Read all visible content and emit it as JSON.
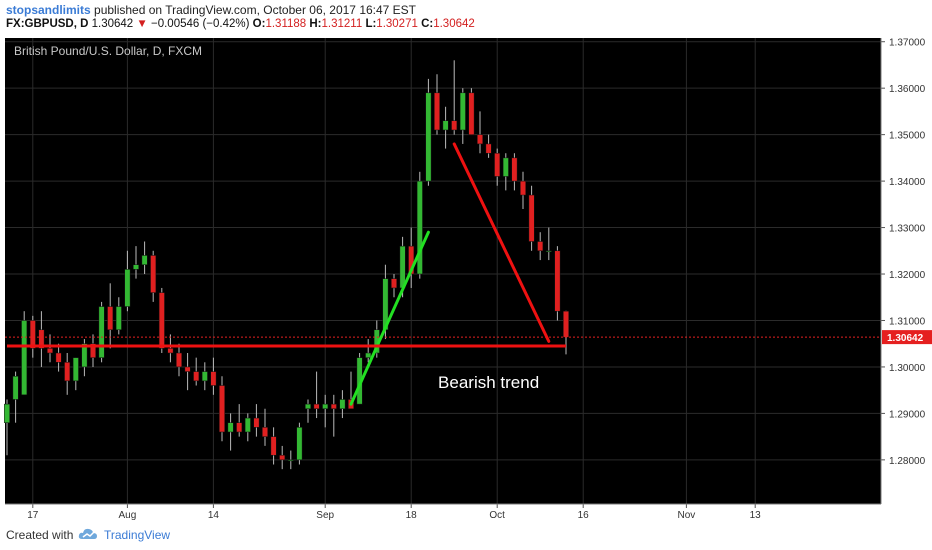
{
  "header": {
    "user": "stopsandlimits",
    "published_text": "published on TradingView.com, October 06, 2017 16:47 EST",
    "symbol": "FX:GBPUSD, D",
    "last": "1.30642",
    "change_arrow": "▼",
    "change": "−0.00546 (−0.42%)",
    "o_label": "O:",
    "o_val": "1.31188",
    "h_label": "H:",
    "h_val": "1.31211",
    "l_label": "L:",
    "l_val": "1.30271",
    "c_label": "C:",
    "c_val": "1.30642"
  },
  "footer": {
    "created_with": "Created with",
    "brand": "TradingView",
    "logo_icon": "tradingview-cloud-icon"
  },
  "colors": {
    "background": "#000000",
    "grid": "#2b2b2b",
    "up": "#33b833",
    "down": "#e02020",
    "green_trend": "#22e022",
    "red_trend": "#ee1111",
    "price_tag": "#e52020"
  },
  "chart_data": {
    "type": "candlestick",
    "title": "British Pound/U.S. Dollar, D, FXCM",
    "ylim": [
      1.2705,
      1.3708
    ],
    "y_ticks": [
      1.28,
      1.29,
      1.3,
      1.31,
      1.32,
      1.33,
      1.34,
      1.35,
      1.36,
      1.37
    ],
    "y_tick_labels": [
      "1.28000",
      "1.29000",
      "1.30000",
      "1.31000",
      "1.32000",
      "1.33000",
      "1.34000",
      "1.35000",
      "1.36000",
      "1.37000"
    ],
    "x_ticks": [
      {
        "label": "17",
        "index": 3
      },
      {
        "label": "Aug",
        "index": 14
      },
      {
        "label": "14",
        "index": 24
      },
      {
        "label": "Sep",
        "index": 37
      },
      {
        "label": "18",
        "index": 47
      },
      {
        "label": "Oct",
        "index": 57
      },
      {
        "label": "16",
        "index": 67
      },
      {
        "label": "Nov",
        "index": 79
      },
      {
        "label": "13",
        "index": 87
      }
    ],
    "x_index_range": [
      0,
      100
    ],
    "grid": true,
    "last_price_label": "1.30642",
    "last_price": 1.30642,
    "candles": [
      {
        "o": 1.288,
        "h": 1.293,
        "l": 1.281,
        "c": 1.292
      },
      {
        "o": 1.293,
        "h": 1.299,
        "l": 1.288,
        "c": 1.298
      },
      {
        "o": 1.294,
        "h": 1.312,
        "l": 1.294,
        "c": 1.31
      },
      {
        "o": 1.31,
        "h": 1.311,
        "l": 1.302,
        "c": 1.304
      },
      {
        "o": 1.308,
        "h": 1.312,
        "l": 1.3,
        "c": 1.304
      },
      {
        "o": 1.304,
        "h": 1.307,
        "l": 1.301,
        "c": 1.303
      },
      {
        "o": 1.303,
        "h": 1.305,
        "l": 1.299,
        "c": 1.301
      },
      {
        "o": 1.301,
        "h": 1.303,
        "l": 1.294,
        "c": 1.297
      },
      {
        "o": 1.297,
        "h": 1.302,
        "l": 1.295,
        "c": 1.302
      },
      {
        "o": 1.3,
        "h": 1.306,
        "l": 1.298,
        "c": 1.305
      },
      {
        "o": 1.305,
        "h": 1.307,
        "l": 1.3,
        "c": 1.302
      },
      {
        "o": 1.302,
        "h": 1.314,
        "l": 1.301,
        "c": 1.313
      },
      {
        "o": 1.313,
        "h": 1.318,
        "l": 1.304,
        "c": 1.308
      },
      {
        "o": 1.308,
        "h": 1.315,
        "l": 1.307,
        "c": 1.313
      },
      {
        "o": 1.313,
        "h": 1.325,
        "l": 1.312,
        "c": 1.321
      },
      {
        "o": 1.321,
        "h": 1.326,
        "l": 1.319,
        "c": 1.322
      },
      {
        "o": 1.322,
        "h": 1.327,
        "l": 1.32,
        "c": 1.324
      },
      {
        "o": 1.324,
        "h": 1.325,
        "l": 1.314,
        "c": 1.316
      },
      {
        "o": 1.316,
        "h": 1.317,
        "l": 1.303,
        "c": 1.304
      },
      {
        "o": 1.304,
        "h": 1.307,
        "l": 1.301,
        "c": 1.303
      },
      {
        "o": 1.303,
        "h": 1.305,
        "l": 1.298,
        "c": 1.3
      },
      {
        "o": 1.3,
        "h": 1.303,
        "l": 1.295,
        "c": 1.299
      },
      {
        "o": 1.299,
        "h": 1.302,
        "l": 1.296,
        "c": 1.297
      },
      {
        "o": 1.297,
        "h": 1.301,
        "l": 1.295,
        "c": 1.299
      },
      {
        "o": 1.299,
        "h": 1.302,
        "l": 1.294,
        "c": 1.296
      },
      {
        "o": 1.296,
        "h": 1.298,
        "l": 1.284,
        "c": 1.286
      },
      {
        "o": 1.286,
        "h": 1.29,
        "l": 1.282,
        "c": 1.288
      },
      {
        "o": 1.288,
        "h": 1.292,
        "l": 1.285,
        "c": 1.286
      },
      {
        "o": 1.286,
        "h": 1.29,
        "l": 1.284,
        "c": 1.289
      },
      {
        "o": 1.289,
        "h": 1.292,
        "l": 1.285,
        "c": 1.287
      },
      {
        "o": 1.287,
        "h": 1.291,
        "l": 1.283,
        "c": 1.285
      },
      {
        "o": 1.285,
        "h": 1.287,
        "l": 1.279,
        "c": 1.281
      },
      {
        "o": 1.281,
        "h": 1.283,
        "l": 1.278,
        "c": 1.28
      },
      {
        "o": 1.28,
        "h": 1.282,
        "l": 1.278,
        "c": 1.28
      },
      {
        "o": 1.28,
        "h": 1.288,
        "l": 1.279,
        "c": 1.287
      },
      {
        "o": 1.291,
        "h": 1.293,
        "l": 1.288,
        "c": 1.292
      },
      {
        "o": 1.292,
        "h": 1.299,
        "l": 1.289,
        "c": 1.291
      },
      {
        "o": 1.291,
        "h": 1.294,
        "l": 1.287,
        "c": 1.292
      },
      {
        "o": 1.292,
        "h": 1.294,
        "l": 1.285,
        "c": 1.291
      },
      {
        "o": 1.291,
        "h": 1.295,
        "l": 1.289,
        "c": 1.293
      },
      {
        "o": 1.293,
        "h": 1.299,
        "l": 1.291,
        "c": 1.291
      },
      {
        "o": 1.292,
        "h": 1.303,
        "l": 1.292,
        "c": 1.302
      },
      {
        "o": 1.302,
        "h": 1.306,
        "l": 1.301,
        "c": 1.303
      },
      {
        "o": 1.303,
        "h": 1.31,
        "l": 1.302,
        "c": 1.308
      },
      {
        "o": 1.308,
        "h": 1.322,
        "l": 1.306,
        "c": 1.319
      },
      {
        "o": 1.319,
        "h": 1.32,
        "l": 1.315,
        "c": 1.317
      },
      {
        "o": 1.317,
        "h": 1.328,
        "l": 1.315,
        "c": 1.326
      },
      {
        "o": 1.326,
        "h": 1.33,
        "l": 1.317,
        "c": 1.32
      },
      {
        "o": 1.32,
        "h": 1.342,
        "l": 1.319,
        "c": 1.34
      },
      {
        "o": 1.34,
        "h": 1.362,
        "l": 1.339,
        "c": 1.359
      },
      {
        "o": 1.359,
        "h": 1.363,
        "l": 1.35,
        "c": 1.351
      },
      {
        "o": 1.351,
        "h": 1.356,
        "l": 1.347,
        "c": 1.353
      },
      {
        "o": 1.353,
        "h": 1.366,
        "l": 1.35,
        "c": 1.351
      },
      {
        "o": 1.351,
        "h": 1.36,
        "l": 1.348,
        "c": 1.359
      },
      {
        "o": 1.359,
        "h": 1.36,
        "l": 1.35,
        "c": 1.35
      },
      {
        "o": 1.35,
        "h": 1.355,
        "l": 1.346,
        "c": 1.348
      },
      {
        "o": 1.348,
        "h": 1.35,
        "l": 1.345,
        "c": 1.346
      },
      {
        "o": 1.346,
        "h": 1.347,
        "l": 1.339,
        "c": 1.341
      },
      {
        "o": 1.341,
        "h": 1.346,
        "l": 1.338,
        "c": 1.345
      },
      {
        "o": 1.345,
        "h": 1.346,
        "l": 1.338,
        "c": 1.34
      },
      {
        "o": 1.34,
        "h": 1.342,
        "l": 1.334,
        "c": 1.337
      },
      {
        "o": 1.337,
        "h": 1.339,
        "l": 1.325,
        "c": 1.327
      },
      {
        "o": 1.327,
        "h": 1.329,
        "l": 1.323,
        "c": 1.325
      },
      {
        "o": 1.325,
        "h": 1.33,
        "l": 1.323,
        "c": 1.325
      },
      {
        "o": 1.325,
        "h": 1.326,
        "l": 1.31,
        "c": 1.312
      },
      {
        "o": 1.312,
        "h": 1.3121,
        "l": 1.3027,
        "c": 1.3064
      }
    ],
    "annotations": [
      {
        "type": "line",
        "color": "green",
        "from": {
          "index": 40,
          "price": 1.292
        },
        "to": {
          "index": 49,
          "price": 1.329
        }
      },
      {
        "type": "line",
        "color": "red",
        "from": {
          "index": 52,
          "price": 1.348
        },
        "to": {
          "index": 63,
          "price": 1.3055
        }
      },
      {
        "type": "horizontal",
        "color": "red",
        "from_index": 0,
        "to_index": 65,
        "price": 1.3045
      },
      {
        "type": "text",
        "text": "Bearish trend",
        "index": 56,
        "price": 1.2955
      }
    ]
  }
}
